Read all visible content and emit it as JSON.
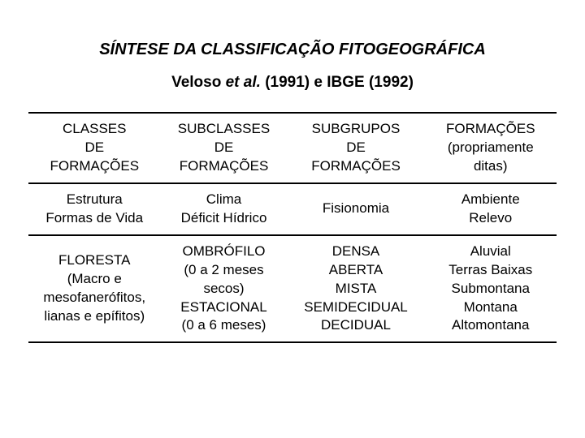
{
  "title": "SÍNTESE DA CLASSIFICAÇÃO FITOGEOGRÁFICA",
  "subtitle_prefix": "Veloso ",
  "subtitle_etal": "et al.",
  "subtitle_suffix": " (1991) e IBGE (1992)",
  "table": {
    "header": {
      "c1": "CLASSES\nDE\nFORMAÇÕES",
      "c2": "SUBCLASSES\nDE\nFORMAÇÕES",
      "c3": "SUBGRUPOS\nDE\nFORMAÇÕES",
      "c4": "FORMAÇÕES\n(propriamente\nditas)"
    },
    "row1": {
      "c1": "Estrutura\nFormas de Vida",
      "c2": "Clima\nDéficit Hídrico",
      "c3": "Fisionomia",
      "c4": "Ambiente\nRelevo"
    },
    "row2": {
      "c1": "FLORESTA\n(Macro e\nmesofanerófitos,\nlianas e epífitos)",
      "c2": "OMBRÓFILO\n(0 a 2 meses\nsecos)\nESTACIONAL\n(0 a 6 meses)",
      "c3": "DENSA\nABERTA\nMISTA\nSEMIDECIDUAL\nDECIDUAL",
      "c4": "Aluvial\nTerras Baixas\nSubmontana\nMontana\nAltomontana"
    }
  },
  "style": {
    "background": "#ffffff",
    "text_color": "#000000",
    "rule_color": "#000000",
    "title_fontsize": 20,
    "subtitle_fontsize": 19,
    "cell_fontsize": 17,
    "font_family": "Arial"
  }
}
